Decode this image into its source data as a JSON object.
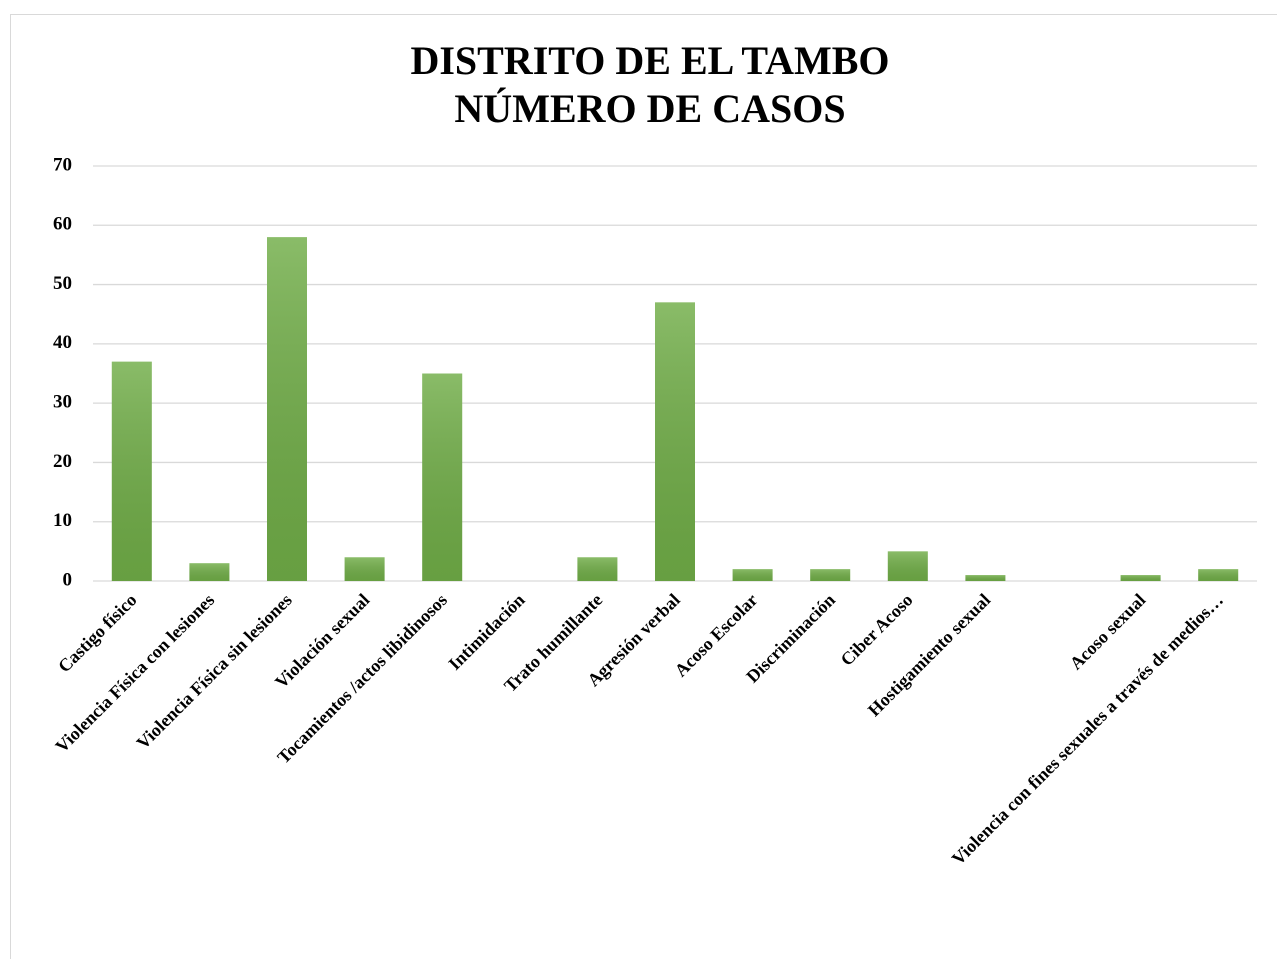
{
  "chart_data": {
    "type": "bar",
    "title": [
      "DISTRITO DE EL TAMBO",
      "NÚMERO DE CASOS"
    ],
    "categories": [
      "Castigo físico",
      "Violencia Física con lesiones",
      "Violencia Física sin lesiones",
      "Violación sexual",
      "Tocamientos /actos libidinosos",
      "Intimidación",
      "Trato humillante",
      "Agresión verbal",
      "Acoso Escolar",
      "Discriminación",
      "Ciber Acoso",
      "Hostigamiento sexual",
      null,
      "Acoso sexual",
      "Violencia con fines sexuales a través de medios…"
    ],
    "values": [
      37,
      3,
      58,
      4,
      35,
      0,
      4,
      47,
      2,
      2,
      5,
      1,
      0,
      1,
      2
    ],
    "color": "#70ad47",
    "ylim": [
      0,
      70
    ],
    "yticks": [
      0,
      10,
      20,
      30,
      40,
      50,
      60,
      70
    ],
    "grid": true
  }
}
